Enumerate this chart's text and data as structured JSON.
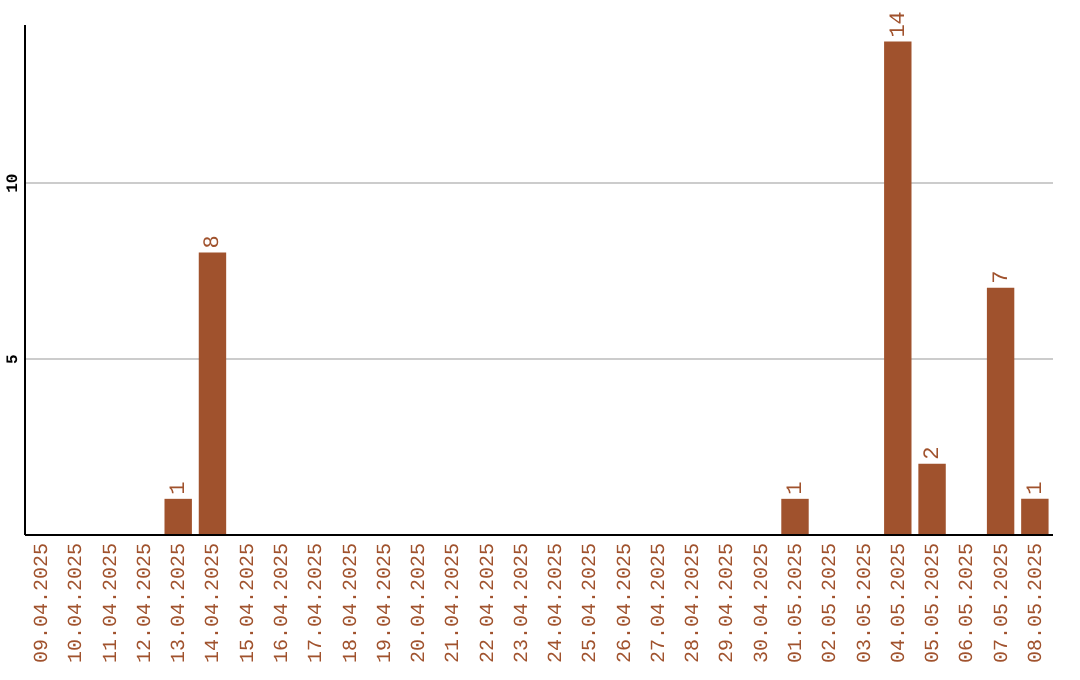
{
  "chart_data": {
    "type": "bar",
    "categories": [
      "09.04.2025",
      "10.04.2025",
      "11.04.2025",
      "12.04.2025",
      "13.04.2025",
      "14.04.2025",
      "15.04.2025",
      "16.04.2025",
      "17.04.2025",
      "18.04.2025",
      "19.04.2025",
      "20.04.2025",
      "21.04.2025",
      "22.04.2025",
      "23.04.2025",
      "24.04.2025",
      "25.04.2025",
      "26.04.2025",
      "27.04.2025",
      "28.04.2025",
      "29.04.2025",
      "30.04.2025",
      "01.05.2025",
      "02.05.2025",
      "03.05.2025",
      "04.05.2025",
      "05.05.2025",
      "06.05.2025",
      "07.05.2025",
      "08.05.2025"
    ],
    "values": [
      0,
      0,
      0,
      0,
      1,
      8,
      0,
      0,
      0,
      0,
      0,
      0,
      0,
      0,
      0,
      0,
      0,
      0,
      0,
      0,
      0,
      0,
      1,
      0,
      0,
      14,
      2,
      0,
      7,
      1
    ],
    "value_labels": [
      null,
      null,
      null,
      null,
      "1",
      "8",
      null,
      null,
      null,
      null,
      null,
      null,
      null,
      null,
      null,
      null,
      null,
      null,
      null,
      null,
      null,
      null,
      "1",
      null,
      null,
      "14",
      "2",
      null,
      "7",
      "1"
    ],
    "color": "#a0522d",
    "ylim": [
      0,
      14.5
    ],
    "yticks": [
      5,
      10
    ],
    "grid": "y"
  }
}
